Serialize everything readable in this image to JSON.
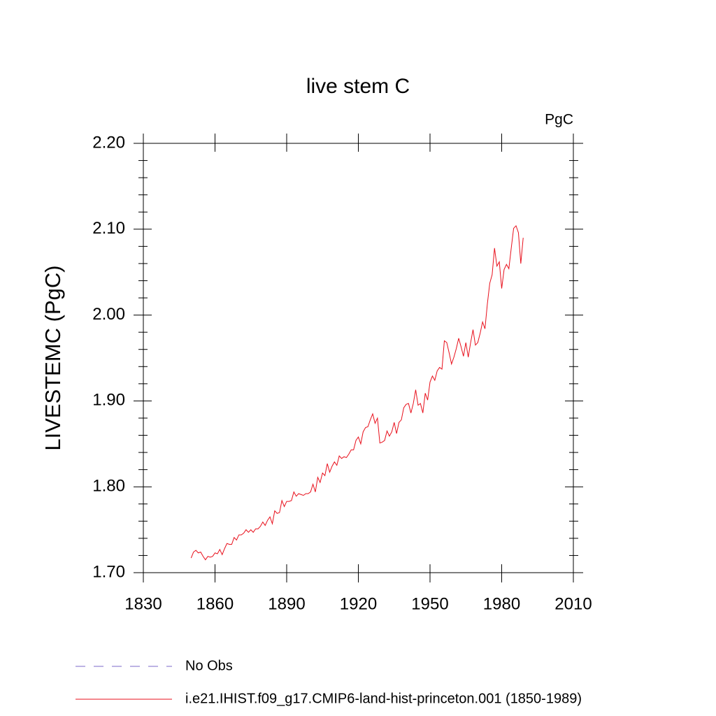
{
  "chart_data": {
    "type": "line",
    "title": "live stem C",
    "units": "PgC",
    "ylabel": "LIVESTEMC  (PgC)",
    "xlim": [
      1830,
      2010
    ],
    "xticks": [
      1830,
      1860,
      1890,
      1920,
      1950,
      1980,
      2010
    ],
    "ylim": [
      1.7,
      2.2
    ],
    "yticks": [
      {
        "value": 1.7,
        "label": "1.70"
      },
      {
        "value": 1.8,
        "label": "1.80"
      },
      {
        "value": 1.9,
        "label": "1.90"
      },
      {
        "value": 2.0,
        "label": "2.00"
      },
      {
        "value": 2.1,
        "label": "2.10"
      },
      {
        "value": 2.2,
        "label": "2.20"
      }
    ],
    "yminorticks": [
      1.72,
      1.74,
      1.76,
      1.78,
      1.82,
      1.84,
      1.86,
      1.88,
      1.92,
      1.94,
      1.96,
      1.98,
      2.02,
      2.04,
      2.06,
      2.08,
      2.12,
      2.14,
      2.16,
      2.18
    ],
    "x": [
      1850,
      1851,
      1852,
      1853,
      1854,
      1855,
      1856,
      1857,
      1858,
      1859,
      1860,
      1861,
      1862,
      1863,
      1864,
      1865,
      1866,
      1867,
      1868,
      1869,
      1870,
      1871,
      1872,
      1873,
      1874,
      1875,
      1876,
      1877,
      1878,
      1879,
      1880,
      1881,
      1882,
      1883,
      1884,
      1885,
      1886,
      1887,
      1888,
      1889,
      1890,
      1891,
      1892,
      1893,
      1894,
      1895,
      1896,
      1897,
      1898,
      1899,
      1900,
      1901,
      1902,
      1903,
      1904,
      1905,
      1906,
      1907,
      1908,
      1909,
      1910,
      1911,
      1912,
      1913,
      1914,
      1915,
      1916,
      1917,
      1918,
      1919,
      1920,
      1921,
      1922,
      1923,
      1924,
      1925,
      1926,
      1927,
      1928,
      1929,
      1930,
      1931,
      1932,
      1933,
      1934,
      1935,
      1936,
      1937,
      1938,
      1939,
      1940,
      1941,
      1942,
      1943,
      1944,
      1945,
      1946,
      1947,
      1948,
      1949,
      1950,
      1951,
      1952,
      1953,
      1954,
      1955,
      1956,
      1957,
      1958,
      1959,
      1960,
      1961,
      1962,
      1963,
      1964,
      1965,
      1966,
      1967,
      1968,
      1969,
      1970,
      1971,
      1972,
      1973,
      1974,
      1975,
      1976,
      1977,
      1978,
      1979,
      1980,
      1981,
      1982,
      1983,
      1984,
      1985,
      1986,
      1987,
      1988,
      1989
    ],
    "series": [
      {
        "name": "No Obs",
        "color": "#7b68c8",
        "dashed": true,
        "values": [
          null,
          null,
          null,
          null,
          null,
          null,
          null,
          null,
          null,
          null,
          null,
          null,
          null,
          null,
          null,
          null,
          null,
          null,
          null,
          null,
          null,
          null,
          null,
          null,
          null,
          null,
          null,
          null,
          null,
          null,
          null,
          null,
          null,
          null,
          null,
          null,
          null,
          null,
          null,
          null,
          null,
          null,
          null,
          null,
          null,
          null,
          null,
          null,
          null,
          null,
          null,
          null,
          null,
          null,
          null,
          null,
          null,
          null,
          null,
          null,
          null,
          null,
          null,
          null,
          null,
          null,
          null,
          null,
          null,
          null,
          null,
          null,
          null,
          null,
          null,
          null,
          null,
          null,
          null,
          null,
          null,
          null,
          null,
          null,
          null,
          null,
          null,
          null,
          null,
          null,
          null,
          null,
          null,
          null,
          null,
          null,
          null,
          null,
          null,
          null,
          null,
          null,
          null,
          null,
          null,
          null,
          null,
          null,
          null,
          null,
          null,
          null,
          null,
          null,
          null,
          null,
          null,
          null,
          null,
          null,
          null,
          null,
          null,
          null,
          null,
          null,
          null,
          null,
          null,
          null,
          null,
          null,
          null,
          null,
          null,
          null,
          null,
          null,
          null,
          null
        ]
      },
      {
        "name": "i.e21.IHIST.f09_g17.CMIP6-land-hist-princeton.001 (1850-1989)",
        "color": "#e8101c",
        "dashed": false,
        "values": [
          1.717,
          1.724,
          1.726,
          1.723,
          1.724,
          1.719,
          1.715,
          1.719,
          1.718,
          1.719,
          1.723,
          1.722,
          1.727,
          1.721,
          1.728,
          1.734,
          1.733,
          1.733,
          1.741,
          1.738,
          1.744,
          1.744,
          1.746,
          1.75,
          1.747,
          1.75,
          1.747,
          1.751,
          1.751,
          1.754,
          1.759,
          1.755,
          1.761,
          1.765,
          1.757,
          1.772,
          1.769,
          1.77,
          1.784,
          1.777,
          1.783,
          1.783,
          1.784,
          1.794,
          1.789,
          1.792,
          1.791,
          1.79,
          1.792,
          1.792,
          1.794,
          1.803,
          1.794,
          1.811,
          1.805,
          1.816,
          1.813,
          1.827,
          1.817,
          1.824,
          1.829,
          1.825,
          1.836,
          1.833,
          1.835,
          1.834,
          1.838,
          1.843,
          1.843,
          1.854,
          1.858,
          1.85,
          1.864,
          1.869,
          1.87,
          1.878,
          1.885,
          1.874,
          1.88,
          1.851,
          1.852,
          1.854,
          1.865,
          1.859,
          1.864,
          1.875,
          1.862,
          1.875,
          1.878,
          1.892,
          1.896,
          1.897,
          1.886,
          1.897,
          1.913,
          1.895,
          1.897,
          1.886,
          1.909,
          1.901,
          1.922,
          1.929,
          1.924,
          1.935,
          1.939,
          1.937,
          1.97,
          1.968,
          1.956,
          1.943,
          1.951,
          1.961,
          1.973,
          1.963,
          1.952,
          1.968,
          1.951,
          1.968,
          1.983,
          1.965,
          1.968,
          1.979,
          1.992,
          1.984,
          2.013,
          2.037,
          2.047,
          2.078,
          2.057,
          2.062,
          2.031,
          2.053,
          2.059,
          2.054,
          2.078,
          2.101,
          2.104,
          2.096,
          2.06,
          2.09
        ]
      }
    ]
  }
}
